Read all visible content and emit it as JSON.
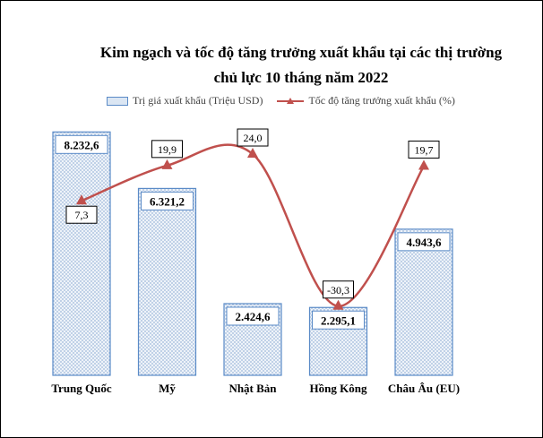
{
  "chart_data": {
    "type": "bar+line",
    "title": "Kim ngạch và tốc độ tăng trưởng xuất khẩu tại các thị trường chủ lực 10 tháng năm 2022",
    "categories": [
      "Trung Quốc",
      "Mỹ",
      "Nhật Bản",
      "Hồng Kông",
      "Châu Âu (EU)"
    ],
    "series": [
      {
        "name": "Trị giá xuất khẩu (Triệu USD)",
        "type": "bar",
        "values": [
          8232.6,
          6321.2,
          2424.6,
          2295.1,
          4943.6
        ],
        "labels": [
          "8.232,6",
          "6.321,2",
          "2.424,6",
          "2.295,1",
          "4.943,6"
        ],
        "color": "#5b8bc7",
        "fill": "#dbe6f3"
      },
      {
        "name": "Tốc độ tăng trưởng xuất khẩu (%)",
        "type": "line",
        "values": [
          7.3,
          19.9,
          24.0,
          -30.3,
          19.7
        ],
        "labels": [
          "7,3",
          "19,9",
          "24,0",
          "-30,3",
          "19,7"
        ],
        "color": "#c0504d"
      }
    ],
    "legend": "top",
    "grid": false,
    "ylim": [
      0,
      9000
    ],
    "y2lim": [
      -55,
      40
    ]
  }
}
